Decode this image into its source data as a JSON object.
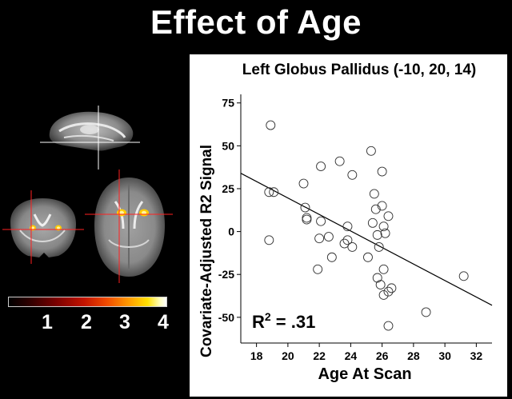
{
  "slide": {
    "title": "Effect of Age"
  },
  "colorbar": {
    "ticks": [
      "1",
      "2",
      "3",
      "4"
    ],
    "colors": [
      "#000000",
      "#7a0000",
      "#c41400",
      "#ff9a00",
      "#ffe000",
      "#ffffff"
    ]
  },
  "brain_views": {
    "icons": [
      "sagittal-brain-slice",
      "coronal-brain-slice",
      "axial-brain-slice"
    ],
    "crosshair_color": "#ff2020",
    "activation_color": "#ffcc00"
  },
  "chart_data": {
    "type": "scatter",
    "title": "Left Globus Pallidus (-10, 20, 14)",
    "xlabel": "Age At Scan",
    "ylabel": "Covariate-Adjusted R2 Signal",
    "annotation": "R",
    "annotation_sup": "2",
    "annotation_value": " = .31",
    "xlim": [
      17,
      33
    ],
    "ylim": [
      -65,
      80
    ],
    "xticks": [
      18,
      20,
      22,
      24,
      26,
      28,
      30,
      32
    ],
    "yticks": [
      75,
      50,
      25,
      0,
      -25,
      -50
    ],
    "points": [
      [
        18.9,
        62
      ],
      [
        18.8,
        23
      ],
      [
        19.1,
        23
      ],
      [
        18.8,
        -5
      ],
      [
        21.0,
        28
      ],
      [
        21.1,
        14
      ],
      [
        21.2,
        8
      ],
      [
        21.2,
        7
      ],
      [
        22.1,
        38
      ],
      [
        22.1,
        6
      ],
      [
        22.0,
        -4
      ],
      [
        21.9,
        -22
      ],
      [
        22.6,
        -3
      ],
      [
        22.8,
        -15
      ],
      [
        23.3,
        41
      ],
      [
        23.6,
        -7
      ],
      [
        23.8,
        3
      ],
      [
        23.8,
        -5
      ],
      [
        24.1,
        33
      ],
      [
        24.1,
        -9
      ],
      [
        25.1,
        -15
      ],
      [
        25.3,
        47
      ],
      [
        25.4,
        5
      ],
      [
        25.5,
        22
      ],
      [
        25.6,
        13
      ],
      [
        25.7,
        -2
      ],
      [
        25.8,
        -9
      ],
      [
        25.7,
        -27
      ],
      [
        25.9,
        -31
      ],
      [
        26.0,
        35
      ],
      [
        26.0,
        15
      ],
      [
        26.1,
        3
      ],
      [
        26.2,
        -1
      ],
      [
        26.1,
        -22
      ],
      [
        26.1,
        -37
      ],
      [
        26.4,
        9
      ],
      [
        26.4,
        -35
      ],
      [
        26.6,
        -33
      ],
      [
        26.4,
        -55
      ],
      [
        28.8,
        -47
      ],
      [
        31.2,
        -26
      ]
    ],
    "regression": {
      "x": [
        17,
        33
      ],
      "y": [
        34,
        -43
      ]
    },
    "grid": false,
    "legend": "none"
  }
}
